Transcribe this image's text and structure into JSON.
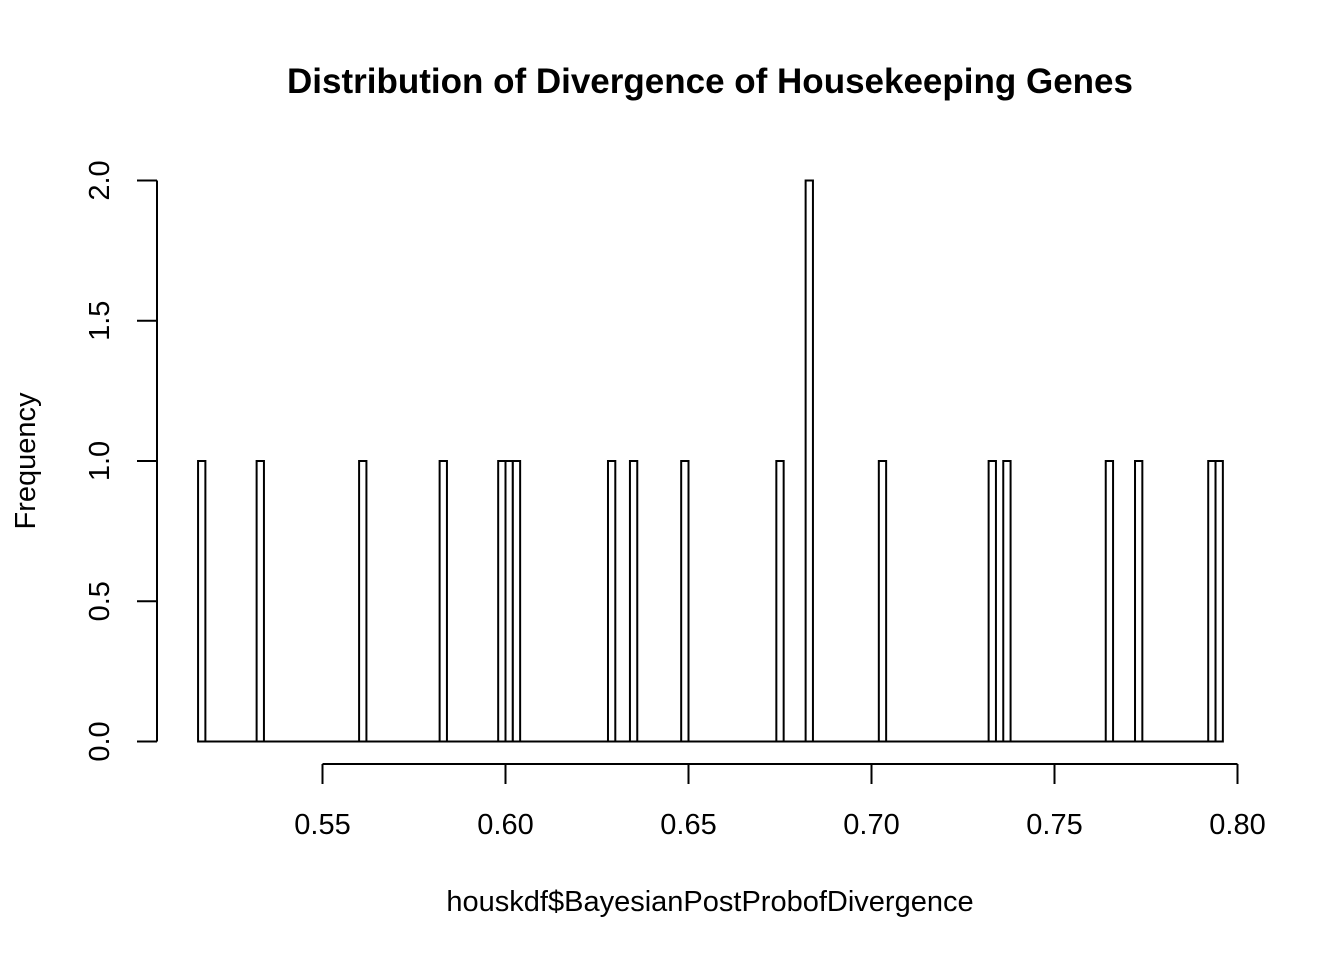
{
  "chart_data": {
    "type": "bar",
    "subtype": "histogram",
    "title": "Distribution of Divergence of Housekeeping Genes",
    "xlabel": "houskdf$BayesianPostProbofDivergence",
    "ylabel": "Frequency",
    "xlim": [
      0.515,
      0.796
    ],
    "ylim": [
      0,
      2.0
    ],
    "x_ticks": [
      0.55,
      0.6,
      0.65,
      0.7,
      0.75,
      0.8
    ],
    "x_tick_labels": [
      "0.55",
      "0.60",
      "0.65",
      "0.70",
      "0.75",
      "0.80"
    ],
    "y_ticks": [
      0.0,
      0.5,
      1.0,
      1.5,
      2.0
    ],
    "y_tick_labels": [
      "0.0",
      "0.5",
      "1.0",
      "1.5",
      "2.0"
    ],
    "bin_width": 0.002,
    "grid": false,
    "legend": "none",
    "bar_fill": "#ffffff",
    "bar_stroke": "#000000",
    "bins": [
      {
        "start": 0.516,
        "count": 1
      },
      {
        "start": 0.532,
        "count": 1
      },
      {
        "start": 0.56,
        "count": 1
      },
      {
        "start": 0.582,
        "count": 1
      },
      {
        "start": 0.598,
        "count": 1
      },
      {
        "start": 0.6,
        "count": 1
      },
      {
        "start": 0.602,
        "count": 1
      },
      {
        "start": 0.628,
        "count": 1
      },
      {
        "start": 0.634,
        "count": 1
      },
      {
        "start": 0.648,
        "count": 1
      },
      {
        "start": 0.674,
        "count": 1
      },
      {
        "start": 0.682,
        "count": 2
      },
      {
        "start": 0.702,
        "count": 1
      },
      {
        "start": 0.732,
        "count": 1
      },
      {
        "start": 0.736,
        "count": 1
      },
      {
        "start": 0.764,
        "count": 1
      },
      {
        "start": 0.772,
        "count": 1
      },
      {
        "start": 0.792,
        "count": 1
      },
      {
        "start": 0.794,
        "count": 1
      }
    ]
  }
}
